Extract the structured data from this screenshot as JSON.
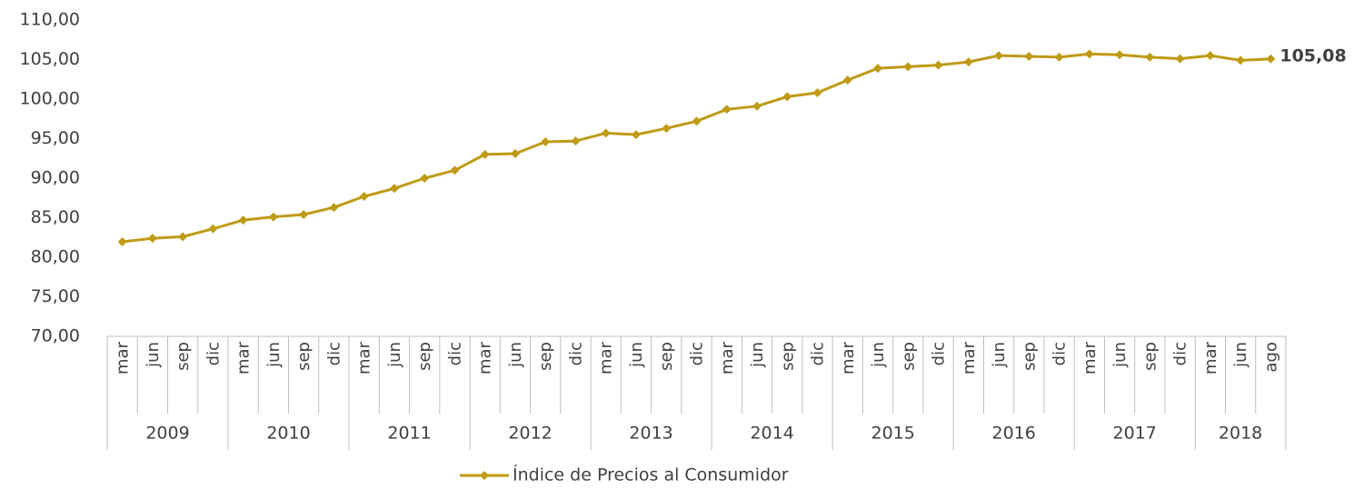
{
  "chart_data": {
    "type": "line",
    "categories": [
      "mar",
      "jun",
      "sep",
      "dic",
      "mar",
      "jun",
      "sep",
      "dic",
      "mar",
      "jun",
      "sep",
      "dic",
      "mar",
      "jun",
      "sep",
      "dic",
      "mar",
      "jun",
      "sep",
      "dic",
      "mar",
      "jun",
      "sep",
      "dic",
      "mar",
      "jun",
      "sep",
      "dic",
      "mar",
      "jun",
      "sep",
      "dic",
      "mar",
      "jun",
      "sep",
      "dic",
      "mar",
      "jun",
      "ago"
    ],
    "years": [
      "2009",
      null,
      null,
      null,
      "2010",
      null,
      null,
      null,
      "2011",
      null,
      null,
      null,
      "2012",
      null,
      null,
      null,
      "2013",
      null,
      null,
      null,
      "2014",
      null,
      null,
      null,
      "2015",
      null,
      null,
      null,
      "2016",
      null,
      null,
      null,
      "2017",
      null,
      null,
      null,
      "2018",
      null,
      null
    ],
    "series": [
      {
        "name": "Índice de Precios al Consumidor",
        "color": "#bf9b17",
        "values": [
          81.95,
          82.4,
          82.6,
          83.6,
          84.7,
          85.1,
          85.4,
          86.3,
          87.7,
          88.7,
          90.0,
          91.0,
          93.0,
          93.1,
          94.6,
          94.7,
          95.7,
          95.5,
          96.3,
          97.2,
          98.7,
          99.1,
          100.3,
          100.8,
          102.4,
          103.9,
          104.1,
          104.3,
          104.7,
          105.5,
          105.4,
          105.3,
          105.7,
          105.6,
          105.3,
          105.1,
          105.5,
          104.9,
          105.08
        ],
        "value_labels": [
          null,
          null,
          null,
          null,
          null,
          null,
          null,
          null,
          null,
          null,
          null,
          null,
          null,
          null,
          null,
          null,
          null,
          null,
          null,
          null,
          null,
          null,
          null,
          null,
          null,
          null,
          null,
          null,
          null,
          null,
          null,
          null,
          null,
          null,
          null,
          null,
          null,
          null,
          "105,08"
        ]
      }
    ],
    "ylim": [
      70,
      110
    ],
    "yticks": [
      {
        "value": 70,
        "label": "70,00"
      },
      {
        "value": 75,
        "label": "75,00"
      },
      {
        "value": 80,
        "label": "80,00"
      },
      {
        "value": 85,
        "label": "85,00"
      },
      {
        "value": 90,
        "label": "90,00"
      },
      {
        "value": 95,
        "label": "95,00"
      },
      {
        "value": 100,
        "label": "100,00"
      },
      {
        "value": 105,
        "label": "105,00"
      },
      {
        "value": 110,
        "label": "110,00"
      }
    ],
    "grid": false,
    "legend": "bottom"
  }
}
